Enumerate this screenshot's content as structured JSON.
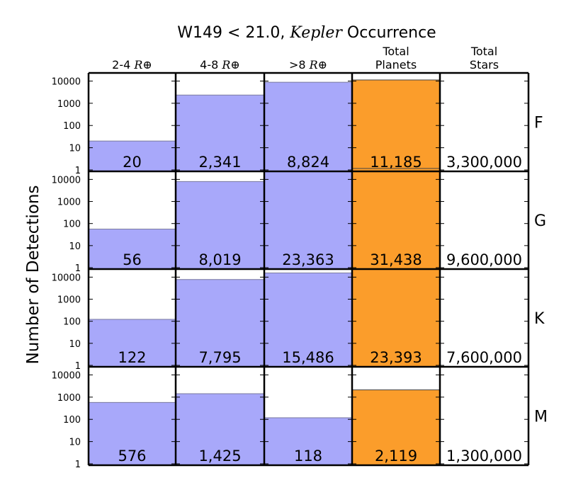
{
  "chart_data": {
    "type": "bar",
    "title": {
      "prefix": "W149 < 21.0, ",
      "italic": "Kepler",
      "suffix": " Occurrence"
    },
    "ylabel": "Number of Detections",
    "yscale": "log",
    "ylim": [
      1,
      20000
    ],
    "yticks": [
      "1",
      "10",
      "100",
      "1000",
      "10000"
    ],
    "columns": [
      {
        "line1": "2-4 ",
        "subscript": "R⊕",
        "line2": ""
      },
      {
        "line1": "4-8 ",
        "subscript": "R⊕",
        "line2": ""
      },
      {
        "line1": ">8 ",
        "subscript": "R⊕",
        "line2": ""
      },
      {
        "line1": "Total",
        "subscript": "",
        "line2": "Planets"
      },
      {
        "line1": "Total",
        "subscript": "",
        "line2": "Stars"
      }
    ],
    "rows": [
      {
        "label": "F",
        "values": [
          20,
          2341,
          8824,
          11185
        ],
        "labels": [
          "20",
          "2,341",
          "8,824",
          "11,185"
        ],
        "stars": "3,300,000"
      },
      {
        "label": "G",
        "values": [
          56,
          8019,
          23363,
          31438
        ],
        "labels": [
          "56",
          "8,019",
          "23,363",
          "31,438"
        ],
        "stars": "9,600,000"
      },
      {
        "label": "K",
        "values": [
          122,
          7795,
          15486,
          23393
        ],
        "labels": [
          "122",
          "7,795",
          "15,486",
          "23,393"
        ],
        "stars": "7,600,000"
      },
      {
        "label": "M",
        "values": [
          576,
          1425,
          118,
          2119
        ],
        "labels": [
          "576",
          "1,425",
          "118",
          "2,119"
        ],
        "stars": "1,300,000"
      }
    ],
    "colors": {
      "planet_bar": "#a8a8fa",
      "planet_bar_edge": "#7a7a9e",
      "total_bar": "#fb9d2b",
      "total_bar_edge": "#444444",
      "frame": "#000000"
    }
  }
}
